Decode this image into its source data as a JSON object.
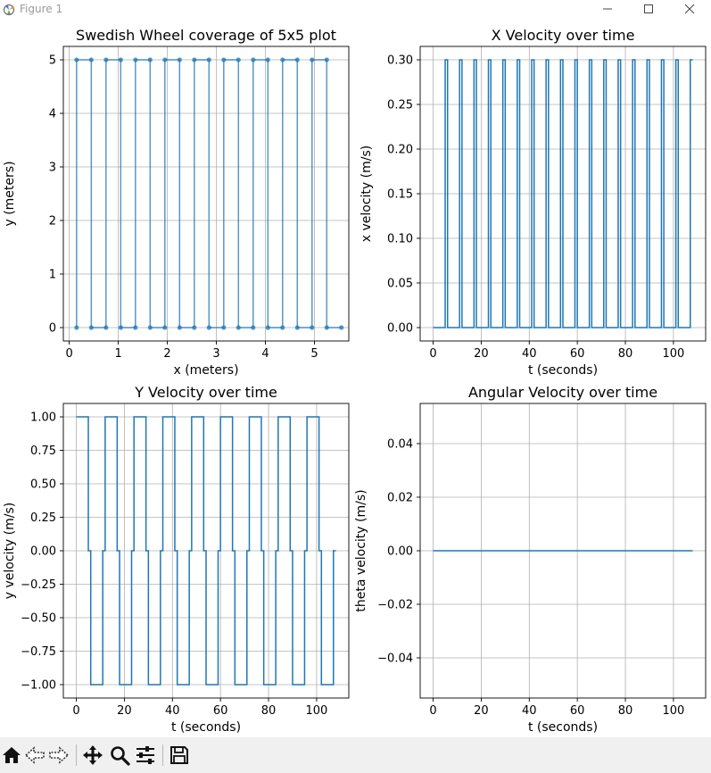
{
  "window": {
    "title": "Figure 1"
  },
  "toolbar": {
    "icons": [
      "home-icon",
      "back-icon",
      "forward-icon",
      "pan-icon",
      "zoom-icon",
      "configure-subplots-icon",
      "save-icon"
    ]
  },
  "colors": {
    "line": "#1f77b4",
    "grid": "#b0b0b0",
    "toolbar_bg": "#f0f0f0"
  },
  "chart_data": [
    {
      "type": "line",
      "title": "Swedish Wheel coverage of 5x5 plot",
      "xlabel": "x (meters)",
      "ylabel": "y (meters)",
      "xlim": [
        -0.12,
        5.7
      ],
      "ylim": [
        -0.25,
        5.25
      ],
      "xticks": [
        0,
        1,
        2,
        3,
        4,
        5
      ],
      "yticks": [
        0,
        1,
        2,
        3,
        4,
        5
      ],
      "xtick_labels": [
        "0",
        "1",
        "2",
        "3",
        "4",
        "5"
      ],
      "ytick_labels": [
        "0",
        "1",
        "2",
        "3",
        "4",
        "5"
      ],
      "grid": true,
      "markers": true,
      "series": [
        {
          "x": [
            0.15,
            0.15,
            0.45,
            0.45,
            0.75,
            0.75,
            1.05,
            1.05,
            1.35,
            1.35,
            1.65,
            1.65,
            1.95,
            1.95,
            2.25,
            2.25,
            2.55,
            2.55,
            2.85,
            2.85,
            3.15,
            3.15,
            3.45,
            3.45,
            3.75,
            3.75,
            4.05,
            4.05,
            4.35,
            4.35,
            4.65,
            4.65,
            4.95,
            4.95,
            5.25,
            5.25,
            5.55
          ],
          "y": [
            0,
            5,
            5,
            0,
            0,
            5,
            5,
            0,
            0,
            5,
            5,
            0,
            0,
            5,
            5,
            0,
            0,
            5,
            5,
            0,
            0,
            5,
            5,
            0,
            0,
            5,
            5,
            0,
            0,
            5,
            5,
            0,
            0,
            5,
            5,
            0,
            0
          ]
        }
      ]
    },
    {
      "type": "line",
      "title": "X Velocity over time",
      "xlabel": "t (seconds)",
      "ylabel": "x velocity (m/s)",
      "xlim": [
        -5.4,
        113.4
      ],
      "ylim": [
        -0.015,
        0.315
      ],
      "xticks": [
        0,
        20,
        40,
        60,
        80,
        100
      ],
      "yticks": [
        0,
        0.05,
        0.1,
        0.15,
        0.2,
        0.25,
        0.3
      ],
      "xtick_labels": [
        "0",
        "20",
        "40",
        "60",
        "80",
        "100"
      ],
      "ytick_labels": [
        "0.00",
        "0.05",
        "0.10",
        "0.15",
        "0.20",
        "0.25",
        "0.30"
      ],
      "grid": true,
      "series": [
        {
          "x": [
            0,
            5,
            5,
            6,
            6,
            11,
            11,
            12,
            12,
            17,
            17,
            18,
            18,
            23,
            23,
            24,
            24,
            29,
            29,
            30,
            30,
            35,
            35,
            36,
            36,
            41,
            41,
            42,
            42,
            47,
            47,
            48,
            48,
            53,
            53,
            54,
            54,
            59,
            59,
            60,
            60,
            65,
            65,
            66,
            66,
            71,
            71,
            72,
            72,
            77,
            77,
            78,
            78,
            83,
            83,
            84,
            84,
            89,
            89,
            90,
            90,
            95,
            95,
            96,
            96,
            101,
            101,
            102,
            102,
            107,
            107,
            108
          ],
          "y": [
            0,
            0,
            0.3,
            0.3,
            0,
            0,
            0.3,
            0.3,
            0,
            0,
            0.3,
            0.3,
            0,
            0,
            0.3,
            0.3,
            0,
            0,
            0.3,
            0.3,
            0,
            0,
            0.3,
            0.3,
            0,
            0,
            0.3,
            0.3,
            0,
            0,
            0.3,
            0.3,
            0,
            0,
            0.3,
            0.3,
            0,
            0,
            0.3,
            0.3,
            0,
            0,
            0.3,
            0.3,
            0,
            0,
            0.3,
            0.3,
            0,
            0,
            0.3,
            0.3,
            0,
            0,
            0.3,
            0.3,
            0,
            0,
            0.3,
            0.3,
            0,
            0,
            0.3,
            0.3,
            0,
            0,
            0.3,
            0.3,
            0,
            0,
            0.3,
            0.3
          ]
        }
      ]
    },
    {
      "type": "line",
      "title": "Y Velocity over time",
      "xlabel": "t (seconds)",
      "ylabel": "y velocity (m/s)",
      "xlim": [
        -5.4,
        113.4
      ],
      "ylim": [
        -1.1,
        1.1
      ],
      "xticks": [
        0,
        20,
        40,
        60,
        80,
        100
      ],
      "yticks": [
        -1,
        -0.75,
        -0.5,
        -0.25,
        0,
        0.25,
        0.5,
        0.75,
        1
      ],
      "xtick_labels": [
        "0",
        "20",
        "40",
        "60",
        "80",
        "100"
      ],
      "ytick_labels": [
        "−1.00",
        "−0.75",
        "−0.50",
        "−0.25",
        "0.00",
        "0.25",
        "0.50",
        "0.75",
        "1.00"
      ],
      "grid": true,
      "series": [
        {
          "x": [
            0,
            5,
            5,
            6,
            6,
            11,
            11,
            12,
            12,
            17,
            17,
            18,
            18,
            23,
            23,
            24,
            24,
            29,
            29,
            30,
            30,
            35,
            35,
            36,
            36,
            41,
            41,
            42,
            42,
            47,
            47,
            48,
            48,
            53,
            53,
            54,
            54,
            59,
            59,
            60,
            60,
            65,
            65,
            66,
            66,
            71,
            71,
            72,
            72,
            77,
            77,
            78,
            78,
            83,
            83,
            84,
            84,
            89,
            89,
            90,
            90,
            95,
            95,
            96,
            96,
            101,
            101,
            102,
            102,
            107,
            107,
            108
          ],
          "y": [
            1,
            1,
            0,
            0,
            -1,
            -1,
            0,
            0,
            1,
            1,
            0,
            0,
            -1,
            -1,
            0,
            0,
            1,
            1,
            0,
            0,
            -1,
            -1,
            0,
            0,
            1,
            1,
            0,
            0,
            -1,
            -1,
            0,
            0,
            1,
            1,
            0,
            0,
            -1,
            -1,
            0,
            0,
            1,
            1,
            0,
            0,
            -1,
            -1,
            0,
            0,
            1,
            1,
            0,
            0,
            -1,
            -1,
            0,
            0,
            1,
            1,
            0,
            0,
            -1,
            -1,
            0,
            0,
            1,
            1,
            0,
            0,
            -1,
            -1,
            0,
            0
          ]
        }
      ]
    },
    {
      "type": "line",
      "title": "Angular Velocity over time",
      "xlabel": "t (seconds)",
      "ylabel": "theta velocity (m/s)",
      "xlim": [
        -5.4,
        113.4
      ],
      "ylim": [
        -0.055,
        0.055
      ],
      "xticks": [
        0,
        20,
        40,
        60,
        80,
        100
      ],
      "yticks": [
        -0.04,
        -0.02,
        0,
        0.02,
        0.04
      ],
      "xtick_labels": [
        "0",
        "20",
        "40",
        "60",
        "80",
        "100"
      ],
      "ytick_labels": [
        "−0.04",
        "−0.02",
        "0.00",
        "0.02",
        "0.04"
      ],
      "grid": true,
      "series": [
        {
          "x": [
            0,
            108
          ],
          "y": [
            0,
            0
          ]
        }
      ]
    }
  ]
}
